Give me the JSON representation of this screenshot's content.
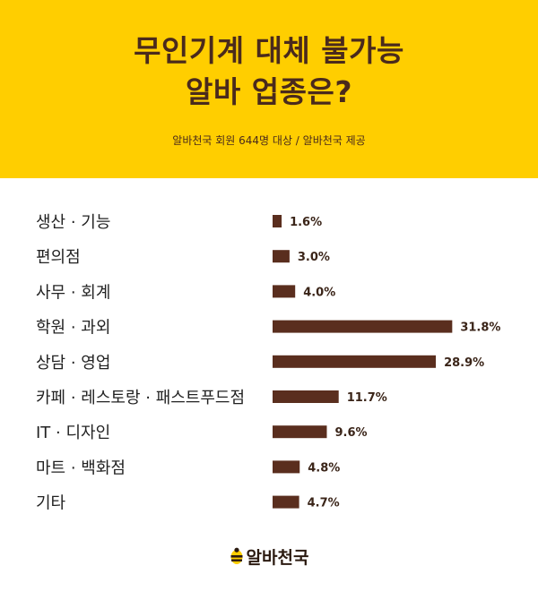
{
  "header": {
    "title_line1": "무인기계 대체 불가능",
    "title_line2": "알바 업종은?",
    "subtitle": "알바천국 회원 644명 대상 / 알바천국 제공"
  },
  "colors": {
    "header_bg": "#FFCE00",
    "bar": "#5A2E1E",
    "title_text": "#4a2a1c"
  },
  "chart_data": {
    "type": "bar",
    "orientation": "horizontal",
    "categories": [
      "생산 · 기능",
      "편의점",
      "사무 · 회계",
      "학원 · 과외",
      "상담 · 영업",
      "카페 · 레스토랑 · 패스트푸드점",
      "IT · 디자인",
      "마트 · 백화점",
      "기타"
    ],
    "values": [
      1.6,
      3.0,
      4.0,
      31.8,
      28.9,
      11.7,
      9.6,
      4.8,
      4.7
    ],
    "value_labels": [
      "1.6%",
      "3.0%",
      "4.0%",
      "31.8%",
      "28.9%",
      "11.7%",
      "9.6%",
      "4.8%",
      "4.7%"
    ],
    "unit": "%",
    "title": "",
    "xlabel": "",
    "ylabel": "",
    "grid": false,
    "legend": "none"
  },
  "footer": {
    "logo_text": "알바천국",
    "logo_icon": "bee-icon"
  }
}
